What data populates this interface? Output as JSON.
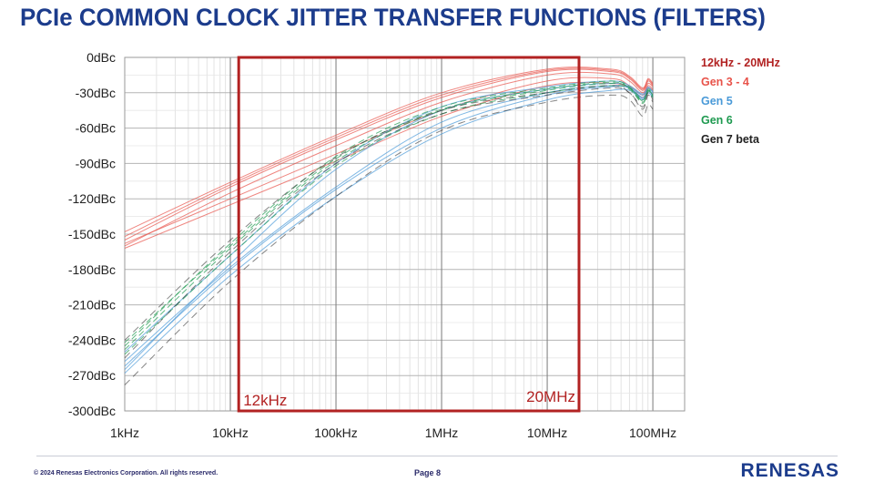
{
  "title": "PCIe COMMON CLOCK JITTER TRANSFER FUNCTIONS (FILTERS)",
  "footer": {
    "copyright": "© 2024 Renesas Electronics Corporation. All rights reserved.",
    "page": "Page 8",
    "logo": "RENESAS"
  },
  "chart_data": {
    "type": "line",
    "title": "",
    "xlabel": "",
    "ylabel": "",
    "x_scale": "log",
    "xlim": [
      1000,
      200000000
    ],
    "ylim": [
      -300,
      0
    ],
    "x_ticks": [
      1000,
      10000,
      100000,
      1000000,
      10000000,
      100000000
    ],
    "x_tick_labels": [
      "1kHz",
      "10kHz",
      "100kHz",
      "1MHz",
      "10MHz",
      "100MHz"
    ],
    "y_ticks": [
      0,
      -30,
      -60,
      -90,
      -120,
      -150,
      -180,
      -210,
      -240,
      -270,
      -300
    ],
    "y_tick_labels": [
      "0dBc",
      "-30dBc",
      "-60dBc",
      "-90dBc",
      "-120dBc",
      "-150dBc",
      "-180dBc",
      "-210dBc",
      "-240dBc",
      "-270dBc",
      "-300dBc"
    ],
    "grid": true,
    "legend_position": "right",
    "legend": [
      {
        "label": "12kHz - 20MHz",
        "color": "#b22222"
      },
      {
        "label": "Gen 3 - 4",
        "color": "#e8534a"
      },
      {
        "label": "Gen 5",
        "color": "#4a9ad8"
      },
      {
        "label": "Gen 6",
        "color": "#1e9a50"
      },
      {
        "label": "Gen 7 beta",
        "color": "#222222"
      }
    ],
    "integration_band": {
      "from": 12000,
      "to": 20000000,
      "label_low": "12kHz",
      "label_high": "20MHz",
      "color": "#b22222"
    },
    "series_groups": [
      {
        "group": "Gen 3 - 4",
        "color": "#e8534a",
        "curves": [
          {
            "x": [
              1000,
              10000,
              100000,
              1000000,
              10000000,
              40000000,
              60000000,
              80000000,
              90000000,
              100000000
            ],
            "y": [
              -160,
              -115,
              -75,
              -38,
              -15,
              -14,
              -20,
              -30,
              -22,
              -25
            ]
          },
          {
            "x": [
              1000,
              10000,
              100000,
              1000000,
              10000000,
              40000000,
              60000000,
              80000000,
              90000000,
              100000000
            ],
            "y": [
              -155,
              -110,
              -70,
              -34,
              -12,
              -12,
              -18,
              -28,
              -20,
              -24
            ]
          },
          {
            "x": [
              1000,
              10000,
              100000,
              1000000,
              10000000,
              40000000,
              60000000,
              80000000,
              90000000,
              100000000
            ],
            "y": [
              -152,
              -108,
              -68,
              -32,
              -11,
              -11,
              -17,
              -27,
              -19,
              -23
            ]
          },
          {
            "x": [
              1000,
              10000,
              100000,
              1000000,
              10000000,
              40000000,
              60000000,
              80000000,
              90000000,
              100000000
            ],
            "y": [
              -158,
              -120,
              -82,
              -45,
              -20,
              -18,
              -24,
              -32,
              -24,
              -27
            ]
          },
          {
            "x": [
              1000,
              10000,
              100000,
              1000000,
              10000000,
              40000000,
              60000000,
              80000000,
              90000000,
              100000000
            ],
            "y": [
              -162,
              -125,
              -88,
              -50,
              -24,
              -22,
              -26,
              -34,
              -26,
              -28
            ]
          },
          {
            "x": [
              1000,
              10000,
              100000,
              1000000,
              10000000,
              40000000,
              60000000,
              80000000,
              90000000,
              100000000
            ],
            "y": [
              -148,
              -106,
              -66,
              -30,
              -10,
              -10,
              -16,
              -26,
              -18,
              -22
            ]
          }
        ]
      },
      {
        "group": "Gen 5",
        "color": "#4a9ad8",
        "curves": [
          {
            "x": [
              1000,
              10000,
              100000,
              1000000,
              10000000,
              40000000,
              60000000,
              80000000,
              90000000,
              100000000
            ],
            "y": [
              -265,
              -175,
              -95,
              -45,
              -27,
              -22,
              -25,
              -32,
              -26,
              -30
            ]
          },
          {
            "x": [
              1000,
              10000,
              100000,
              1000000,
              10000000,
              40000000,
              60000000,
              80000000,
              90000000,
              100000000
            ],
            "y": [
              -262,
              -180,
              -112,
              -60,
              -32,
              -25,
              -26,
              -34,
              -28,
              -32
            ]
          },
          {
            "x": [
              1000,
              10000,
              100000,
              1000000,
              10000000,
              40000000,
              60000000,
              80000000,
              90000000,
              100000000
            ],
            "y": [
              -258,
              -178,
              -110,
              -55,
              -30,
              -24,
              -26,
              -35,
              -28,
              -33
            ]
          },
          {
            "x": [
              1000,
              10000,
              100000,
              1000000,
              10000000,
              40000000,
              60000000,
              80000000,
              90000000,
              100000000
            ],
            "y": [
              -250,
              -168,
              -90,
              -42,
              -25,
              -20,
              -24,
              -31,
              -25,
              -29
            ]
          },
          {
            "x": [
              1000,
              10000,
              100000,
              1000000,
              10000000,
              40000000,
              60000000,
              80000000,
              90000000,
              100000000
            ],
            "y": [
              -268,
              -185,
              -118,
              -65,
              -36,
              -28,
              -28,
              -36,
              -30,
              -34
            ]
          }
        ]
      },
      {
        "group": "Gen 6",
        "color": "#1e9a50",
        "curves": [
          {
            "x": [
              1000,
              10000,
              100000,
              1000000,
              10000000,
              40000000,
              60000000,
              80000000,
              90000000,
              100000000
            ],
            "y": [
              -248,
              -162,
              -88,
              -45,
              -28,
              -22,
              -26,
              -38,
              -28,
              -33
            ]
          },
          {
            "x": [
              1000,
              10000,
              100000,
              1000000,
              10000000,
              40000000,
              60000000,
              80000000,
              90000000,
              100000000
            ],
            "y": [
              -245,
              -158,
              -84,
              -42,
              -26,
              -20,
              -25,
              -36,
              -27,
              -31
            ]
          },
          {
            "x": [
              1000,
              10000,
              100000,
              1000000,
              10000000,
              40000000,
              60000000,
              80000000,
              90000000,
              100000000
            ],
            "y": [
              -252,
              -168,
              -92,
              -48,
              -30,
              -24,
              -27,
              -39,
              -29,
              -34
            ]
          },
          {
            "x": [
              1000,
              10000,
              100000,
              1000000,
              10000000,
              40000000,
              60000000,
              80000000,
              90000000,
              100000000
            ],
            "y": [
              -242,
              -160,
              -86,
              -44,
              -27,
              -21,
              -26,
              -37,
              -28,
              -32
            ]
          }
        ]
      },
      {
        "group": "Gen 7 beta",
        "color": "#222222",
        "curves": [
          {
            "x": [
              1000,
              10000,
              100000,
              1000000,
              10000000,
              40000000,
              60000000,
              80000000,
              90000000,
              100000000
            ],
            "y": [
              -240,
              -155,
              -85,
              -45,
              -30,
              -24,
              -30,
              -42,
              -30,
              -36
            ]
          },
          {
            "x": [
              1000,
              10000,
              100000,
              1000000,
              10000000,
              40000000,
              60000000,
              80000000,
              90000000,
              100000000
            ],
            "y": [
              -255,
              -165,
              -90,
              -48,
              -32,
              -26,
              -30,
              -44,
              -32,
              -38
            ]
          },
          {
            "x": [
              1000,
              10000,
              100000,
              1000000,
              10000000,
              40000000,
              60000000,
              80000000,
              90000000,
              100000000
            ],
            "y": [
              -278,
              -190,
              -118,
              -62,
              -38,
              -32,
              -36,
              -50,
              -40,
              -44
            ]
          }
        ]
      }
    ]
  }
}
